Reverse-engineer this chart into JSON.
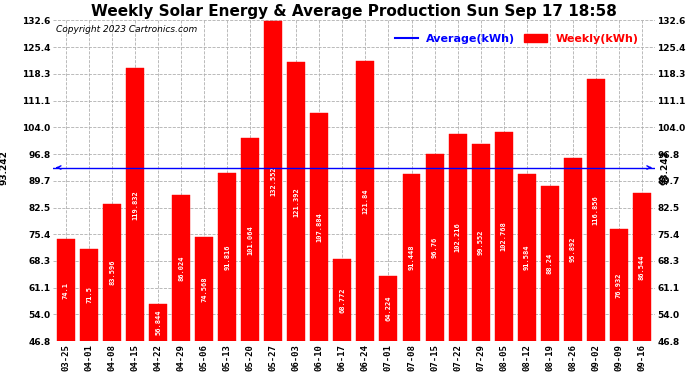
{
  "title": "Weekly Solar Energy & Average Production Sun Sep 17 18:58",
  "copyright": "Copyright 2023 Cartronics.com",
  "average_label": "Average(kWh)",
  "weekly_label": "Weekly(kWh)",
  "average_value": 93.242,
  "categories": [
    "03-25",
    "04-01",
    "04-08",
    "04-15",
    "04-22",
    "04-29",
    "05-06",
    "05-13",
    "05-20",
    "05-27",
    "06-03",
    "06-10",
    "06-17",
    "06-24",
    "07-01",
    "07-08",
    "07-15",
    "07-22",
    "07-29",
    "08-05",
    "08-12",
    "08-19",
    "08-26",
    "09-02",
    "09-09",
    "09-16"
  ],
  "values": [
    74.1,
    71.5,
    83.596,
    119.832,
    56.844,
    86.024,
    74.568,
    91.816,
    101.064,
    132.552,
    121.392,
    107.884,
    68.772,
    121.84,
    64.224,
    91.448,
    96.76,
    102.216,
    99.552,
    102.768,
    91.584,
    88.24,
    95.892,
    116.856,
    76.932,
    86.544
  ],
  "bar_color": "#ff0000",
  "bar_label_color": "#ffffff",
  "avg_line_color": "#0000ff",
  "background_color": "#ffffff",
  "grid_color": "#b0b0b0",
  "ylim_min": 46.8,
  "ylim_max": 132.6,
  "yticks": [
    46.8,
    54.0,
    61.1,
    68.3,
    75.4,
    82.5,
    89.7,
    96.8,
    104.0,
    111.1,
    118.3,
    125.4,
    132.6
  ],
  "title_fontsize": 11,
  "copyright_fontsize": 6.5,
  "legend_fontsize": 8,
  "bar_label_fontsize": 5.0,
  "tick_fontsize": 6.5,
  "avg_label_fontsize": 6.5
}
